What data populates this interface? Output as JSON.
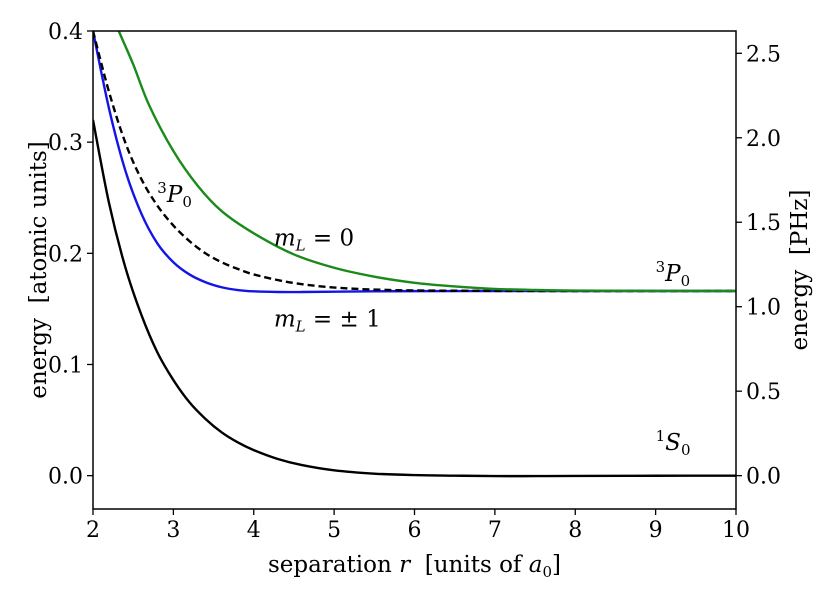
{
  "chart_data": {
    "type": "line",
    "xlabel": "separation r  [units of a0]",
    "xlabel_parts": {
      "main": "separation ",
      "var": "r",
      "bracket_open": "  [units of ",
      "unit_var": "a",
      "unit_sub": "0",
      "bracket_close": "]"
    },
    "ylabel_left": "energy  [atomic units]",
    "ylabel_right": "energy  [PHz]",
    "xlim": [
      2,
      10
    ],
    "ylim_left": [
      -0.03,
      0.4
    ],
    "ylim_right_factor": 6.5797,
    "x_ticks": [
      "2",
      "3",
      "4",
      "5",
      "6",
      "7",
      "8",
      "9",
      "10"
    ],
    "y_ticks_left": [
      "0.0",
      "0.1",
      "0.2",
      "0.3",
      "0.4"
    ],
    "y_ticks_right": [
      "0.0",
      "0.5",
      "1.0",
      "1.5",
      "2.0",
      "2.5"
    ],
    "grid": false,
    "series": [
      {
        "color": "#000000",
        "dash": "solid",
        "points": [
          [
            2.0,
            0.32
          ],
          [
            2.2,
            0.245
          ],
          [
            2.4,
            0.188
          ],
          [
            2.6,
            0.145
          ],
          [
            2.8,
            0.111
          ],
          [
            3.0,
            0.086
          ],
          [
            3.2,
            0.066
          ],
          [
            3.4,
            0.051
          ],
          [
            3.6,
            0.039
          ],
          [
            3.8,
            0.03
          ],
          [
            4.0,
            0.023
          ],
          [
            4.3,
            0.015
          ],
          [
            4.6,
            0.0095
          ],
          [
            5.0,
            0.0048
          ],
          [
            5.5,
            0.0018
          ],
          [
            6.0,
            0.0005
          ],
          [
            6.5,
            0.0
          ],
          [
            7.0,
            -0.0004
          ],
          [
            7.5,
            -0.0004
          ],
          [
            8.0,
            -0.0003
          ],
          [
            9.0,
            -0.0001
          ],
          [
            10.0,
            0.0
          ]
        ]
      },
      {
        "color": "#1414e6",
        "dash": "solid",
        "points": [
          [
            2.0,
            0.4
          ],
          [
            2.2,
            0.33
          ],
          [
            2.4,
            0.275
          ],
          [
            2.6,
            0.236
          ],
          [
            2.8,
            0.209
          ],
          [
            3.0,
            0.192
          ],
          [
            3.2,
            0.181
          ],
          [
            3.4,
            0.174
          ],
          [
            3.6,
            0.1695
          ],
          [
            3.8,
            0.167
          ],
          [
            4.0,
            0.1658
          ],
          [
            4.3,
            0.1652
          ],
          [
            4.6,
            0.1652
          ],
          [
            5.0,
            0.1655
          ],
          [
            5.5,
            0.1658
          ],
          [
            6.0,
            0.166
          ],
          [
            7.0,
            0.1661
          ],
          [
            8.0,
            0.1661
          ],
          [
            10.0,
            0.1661
          ]
        ]
      },
      {
        "color": "#000000",
        "dash": "dashed",
        "points": [
          [
            2.0,
            0.4
          ],
          [
            2.2,
            0.345
          ],
          [
            2.4,
            0.3
          ],
          [
            2.6,
            0.267
          ],
          [
            2.8,
            0.243
          ],
          [
            3.0,
            0.225
          ],
          [
            3.2,
            0.211
          ],
          [
            3.4,
            0.2
          ],
          [
            3.6,
            0.192
          ],
          [
            3.8,
            0.186
          ],
          [
            4.0,
            0.181
          ],
          [
            4.4,
            0.1745
          ],
          [
            4.8,
            0.1705
          ],
          [
            5.2,
            0.1683
          ],
          [
            5.6,
            0.1672
          ],
          [
            6.0,
            0.1666
          ],
          [
            7.0,
            0.1662
          ],
          [
            8.0,
            0.1661
          ],
          [
            10.0,
            0.1661
          ]
        ]
      },
      {
        "color": "#1a8a1a",
        "dash": "solid",
        "points": [
          [
            2.32,
            0.4
          ],
          [
            2.5,
            0.37
          ],
          [
            2.7,
            0.333
          ],
          [
            3.0,
            0.292
          ],
          [
            3.3,
            0.261
          ],
          [
            3.6,
            0.238
          ],
          [
            4.0,
            0.218
          ],
          [
            4.5,
            0.199
          ],
          [
            5.0,
            0.187
          ],
          [
            5.5,
            0.179
          ],
          [
            6.0,
            0.1735
          ],
          [
            6.5,
            0.1702
          ],
          [
            7.0,
            0.168
          ],
          [
            7.5,
            0.167
          ],
          [
            8.0,
            0.1665
          ],
          [
            9.0,
            0.1662
          ],
          [
            10.0,
            0.1661
          ]
        ]
      }
    ],
    "annotations": [
      {
        "key": "p0_left",
        "sup": "3",
        "main": "P",
        "sub": "0",
        "x": 2.8,
        "y": 0.246
      },
      {
        "key": "ml0",
        "main": "m",
        "sub": "L",
        "rest": " = 0",
        "x": 4.25,
        "y": 0.207
      },
      {
        "key": "p0_right",
        "sup": "3",
        "main": "P",
        "sub": "0",
        "x": 9.0,
        "y": 0.175
      },
      {
        "key": "ml1",
        "main": "m",
        "sub": "L",
        "rest": " = ± 1",
        "x": 4.25,
        "y": 0.134
      },
      {
        "key": "s0",
        "sup": "1",
        "main": "S",
        "sub": "0",
        "x": 9.0,
        "y": 0.023
      }
    ]
  }
}
